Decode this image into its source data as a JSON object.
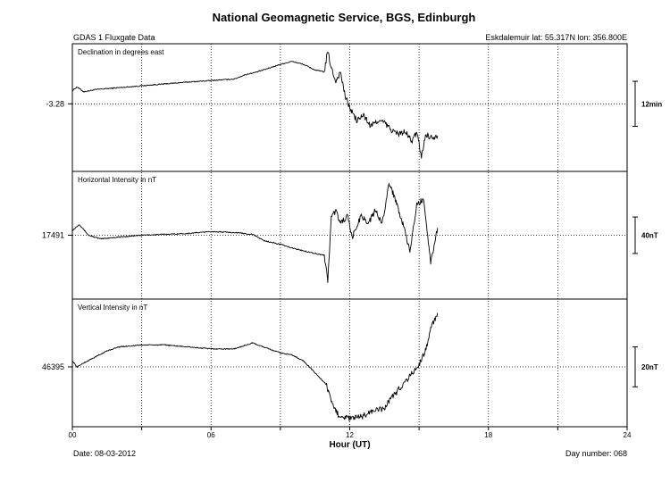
{
  "title": "National Geomagnetic Service, BGS, Edinburgh",
  "instrument": "GDAS 1 Fluxgate Data",
  "station": "Eskdalemuir lat: 55.317N lon: 356.800E",
  "date_label": "Date: 08-03-2012",
  "day_label": "Day number:  068",
  "chart_data": {
    "type": "line",
    "xlabel": "Hour (UT)",
    "xlim": [
      0,
      24
    ],
    "x_ticks": [
      "00",
      "06",
      "12",
      "18",
      "24"
    ],
    "grid": true,
    "panels": [
      {
        "name": "Declination in degrees east",
        "baseline_label": "-3.28",
        "scale_label": "12min",
        "unit": "min",
        "baseline": 0,
        "scale_bar": 12,
        "ylim": [
          -18,
          16
        ],
        "x": [
          0,
          0.2,
          0.5,
          1,
          2,
          3,
          4,
          5,
          6,
          7,
          7.5,
          8,
          8.5,
          9,
          9.5,
          10,
          10.5,
          10.9,
          11.05,
          11.2,
          11.4,
          11.6,
          11.8,
          12,
          12.3,
          12.6,
          12.9,
          13.2,
          13.5,
          13.8,
          14.1,
          14.4,
          14.7,
          14.9,
          15.1,
          15.3,
          15.5,
          15.8
        ],
        "y": [
          3.5,
          4.5,
          3.2,
          3.8,
          4.3,
          4.8,
          5.3,
          5.8,
          6.2,
          6.6,
          7.8,
          8.5,
          9.5,
          10.5,
          11.3,
          10.5,
          9.0,
          8.5,
          14,
          9.5,
          6.0,
          8.5,
          2.0,
          -1.0,
          -4.5,
          -3.0,
          -6.0,
          -4.5,
          -5.0,
          -7.0,
          -8.0,
          -7.5,
          -10,
          -7.5,
          -14,
          -8.0,
          -9.0,
          -8.5
        ]
      },
      {
        "name": "Horizontal Intensity in nT",
        "baseline_label": "17491",
        "scale_label": "40nT",
        "unit": "nT",
        "baseline": 0,
        "scale_bar": 40,
        "ylim": [
          -70,
          70
        ],
        "x": [
          0,
          0.3,
          0.7,
          1.2,
          2,
          3,
          4,
          5,
          6,
          7,
          7.8,
          8.3,
          9,
          9.5,
          10,
          10.5,
          10.9,
          11.05,
          11.2,
          11.4,
          11.6,
          11.9,
          12.1,
          12.5,
          12.8,
          13.1,
          13.4,
          13.7,
          14,
          14.3,
          14.6,
          14.9,
          15.2,
          15.5,
          15.8
        ],
        "y": [
          5,
          12,
          0,
          -4,
          -2,
          0,
          1,
          2,
          4,
          3,
          1,
          -6,
          -10,
          -14,
          -17,
          -20,
          -22,
          -50,
          20,
          27,
          13,
          21,
          -3,
          22,
          13,
          27,
          13,
          57,
          38,
          12,
          -18,
          33,
          40,
          -30,
          8
        ]
      },
      {
        "name": "Vertical Intensity in nT",
        "baseline_label": "46395",
        "scale_label": "20nT",
        "unit": "nT",
        "baseline": 0,
        "scale_bar": 20,
        "ylim": [
          -30,
          34
        ],
        "x": [
          0,
          0.2,
          0.5,
          1,
          1.5,
          2,
          3,
          4,
          5,
          6,
          7,
          7.8,
          8.5,
          9,
          9.5,
          10,
          10.5,
          11,
          11.2,
          11.5,
          12,
          12.5,
          13,
          13.5,
          13.8,
          14,
          14.5,
          15,
          15.3,
          15.5,
          15.8
        ],
        "y": [
          3,
          0,
          2,
          5,
          8,
          10,
          11,
          11,
          10,
          9,
          9,
          12,
          9,
          7,
          6,
          3,
          -3,
          -9,
          -18,
          -24,
          -26,
          -25,
          -22,
          -21,
          -15,
          -13,
          -6,
          1,
          9,
          19,
          27
        ]
      }
    ]
  }
}
